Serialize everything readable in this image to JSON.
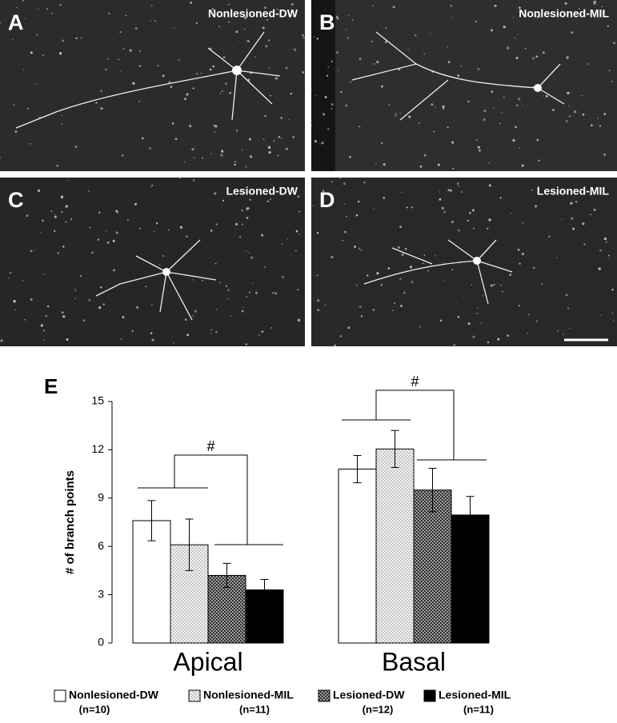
{
  "panels": [
    {
      "letter": "A",
      "label": "Nonlesioned-DW"
    },
    {
      "letter": "B",
      "label": "Nonlesioned-MIL"
    },
    {
      "letter": "C",
      "label": "Lesioned-DW"
    },
    {
      "letter": "D",
      "label": "Lesioned-MIL"
    }
  ],
  "chart_data": {
    "type": "bar",
    "panel_letter": "E",
    "y_label": "# of branch points",
    "categories": [
      "Apical",
      "Basal"
    ],
    "ylim": [
      0,
      15
    ],
    "yticks": [
      0,
      3,
      6,
      9,
      12,
      15
    ],
    "annotations": [
      "#",
      "#"
    ],
    "series": [
      {
        "name": "Nonlesioned-DW",
        "n_label": "(n=10)",
        "color": "#ffffff",
        "pattern": "none",
        "values": [
          7.6,
          10.8
        ],
        "errors": [
          1.25,
          0.85
        ]
      },
      {
        "name": "Nonlesioned-MIL",
        "n_label": "(n=11)",
        "color": "#e6e6e6",
        "pattern": "dots",
        "values": [
          6.1,
          12.05
        ],
        "errors": [
          1.6,
          1.15
        ]
      },
      {
        "name": "Lesioned-DW",
        "n_label": "(n=12)",
        "color": "#6e6e6e",
        "pattern": "checker",
        "values": [
          4.2,
          9.5
        ],
        "errors": [
          0.75,
          1.35
        ]
      },
      {
        "name": "Lesioned-MIL",
        "n_label": "(n=11)",
        "color": "#000000",
        "pattern": "none",
        "values": [
          3.3,
          7.95
        ],
        "errors": [
          0.65,
          1.15
        ]
      }
    ]
  }
}
